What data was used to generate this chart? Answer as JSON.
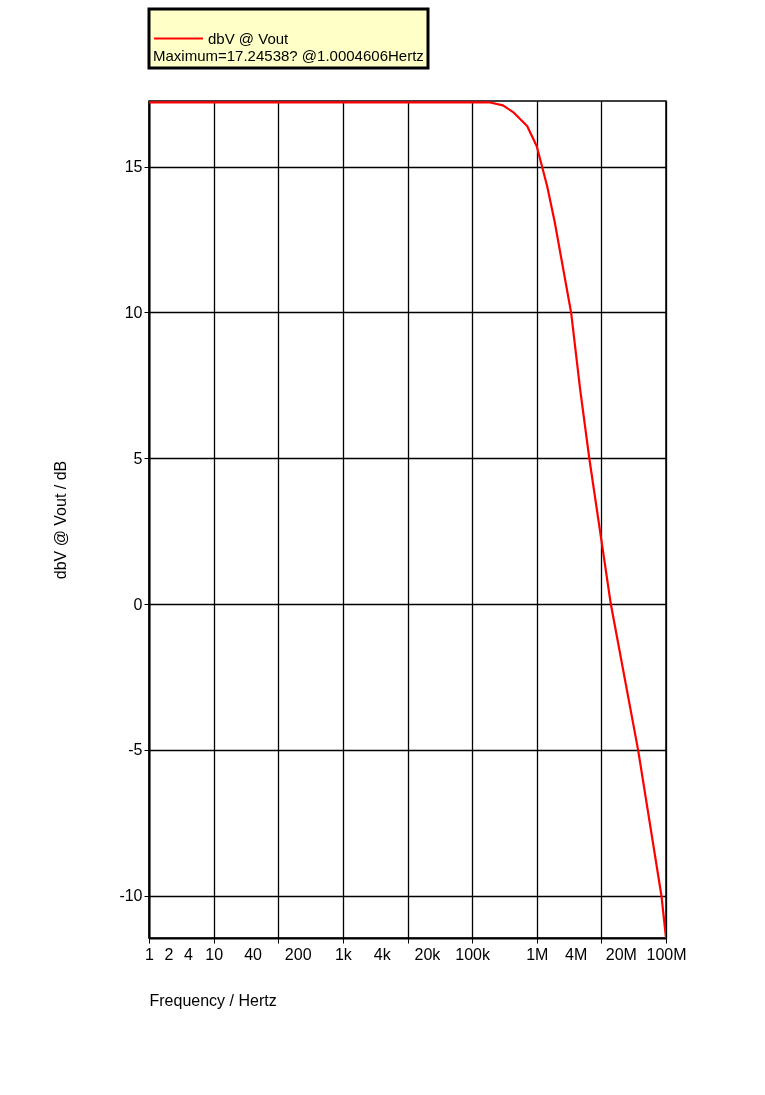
{
  "chart_data": {
    "type": "line",
    "xlabel": "Frequency / Hertz",
    "ylabel": "dbV @ Vout / dB",
    "log": "x",
    "grid": true,
    "legend": "top left",
    "annotations": [
      "Maximum=17.24538? @1.0004606Hertz"
    ],
    "xlim": [
      1,
      100000000
    ],
    "ylim": [
      -11.45,
      17.25
    ],
    "xticks": [
      1,
      2,
      4,
      10,
      40,
      {
        "value": 100,
        "label": null
      },
      200,
      {
        "value": 1000,
        "label": "1k"
      },
      {
        "value": 4000,
        "label": "4k"
      },
      {
        "value": 10000,
        "label": null
      },
      {
        "value": 20000,
        "label": "20k"
      },
      {
        "value": 100000,
        "label": "100k"
      },
      {
        "value": 1000000,
        "label": "1M"
      },
      {
        "value": 4000000,
        "label": "4M"
      },
      {
        "value": 10000000,
        "label": null
      },
      {
        "value": 20000000,
        "label": "20M"
      },
      {
        "value": 100000000,
        "label": "100M"
      }
    ],
    "yticks": [
      -10,
      -5,
      0,
      5,
      10,
      15
    ],
    "series": [
      {
        "name": "dbV @ Vout",
        "color": "#ff0000",
        "x": [
          1,
          100000,
          190000,
          300000,
          430000,
          710000,
          1000000,
          1450000,
          1900000,
          3400000,
          4700000,
          6500000,
          14000000,
          37000000,
          85000000,
          100000000
        ],
        "values": [
          17.2,
          17.2,
          17.2,
          17.1,
          16.87,
          16.39,
          15.7,
          14.33,
          13.09,
          10,
          7.35,
          5,
          0,
          -5,
          -10,
          -11.45
        ]
      }
    ]
  }
}
